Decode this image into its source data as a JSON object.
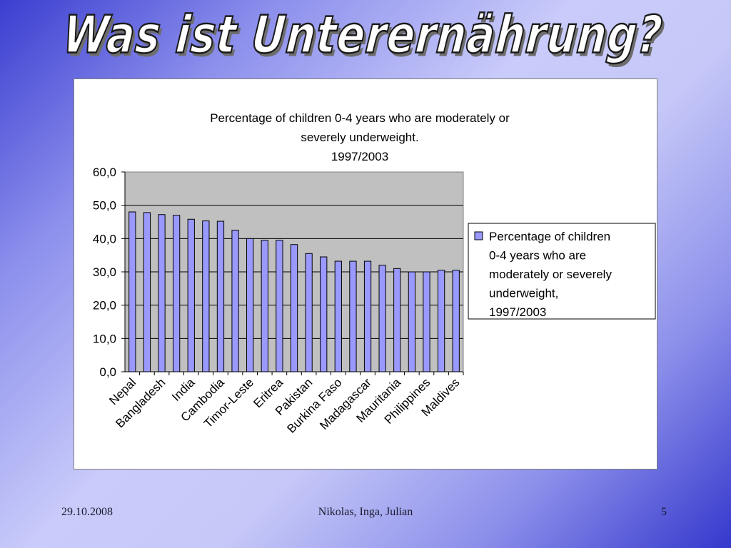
{
  "slide": {
    "title": "Was ist Unterernährung?",
    "footer_date": "29.10.2008",
    "footer_authors": "Nikolas, Inga, Julian",
    "footer_page": "5"
  },
  "chart_data": {
    "type": "bar",
    "title_lines": [
      "Percentage of children 0-4 years who are moderately or",
      "severely underweight.",
      "1997/2003"
    ],
    "categories": [
      "Nepal",
      "",
      "Bangladesh",
      "",
      "India",
      "",
      "Cambodia",
      "",
      "Timor-Leste",
      "",
      "Eritrea",
      "",
      "Pakistan",
      "",
      "Burkina Faso",
      "",
      "Madagascar",
      "",
      "Mauritania",
      "",
      "Philippines",
      "",
      "Maldives"
    ],
    "series": [
      {
        "name": "Percentage of children 0-4 years who are moderately or severely underweight, 1997/2003",
        "values": [
          48.0,
          47.8,
          47.2,
          47.0,
          45.8,
          45.3,
          45.2,
          42.5,
          40.0,
          39.5,
          39.5,
          38.2,
          35.5,
          34.5,
          33.2,
          33.2,
          33.2,
          32.0,
          31.0,
          30.0,
          30.0,
          30.5,
          30.5
        ],
        "color": "#9999ff"
      }
    ],
    "legend_lines": [
      "Percentage of children",
      "0-4 years who are",
      "moderately or severely",
      "underweight,",
      "1997/2003"
    ],
    "legend_position": "right",
    "y_ticks": [
      "60,0",
      "50,0",
      "40,0",
      "30,0",
      "20,0",
      "10,0",
      "0,0"
    ],
    "ylim": [
      0,
      60
    ],
    "grid": true,
    "plot_background": "#c0c0c0",
    "bar_color": "#9999ff"
  }
}
